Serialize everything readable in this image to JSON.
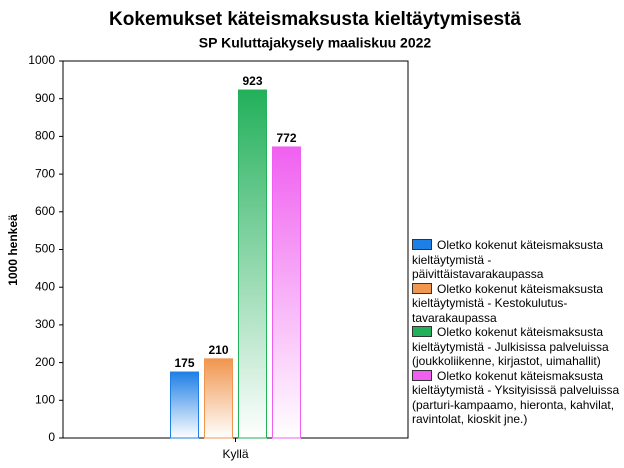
{
  "chart_data": {
    "type": "bar",
    "title": "Kokemukset käteismaksusta kieltäytymisestä",
    "subtitle": "SP Kuluttajakysely maaliskuu 2022",
    "y_label": "1000 henkeä",
    "categories": [
      "Kyllä"
    ],
    "series": [
      {
        "name": "Oletko kokenut käteismaksusta kieltäytymistä - päivittäistavarakaupassa",
        "color": "#1e7fe6",
        "values": [
          175
        ]
      },
      {
        "name": "Oletko kokenut käteismaksusta kieltäytymistä - Kestokulutus-tavarakaupassa",
        "color": "#f0964f",
        "values": [
          210
        ]
      },
      {
        "name": "Oletko kokenut käteismaksusta kieltäytymistä - Julkisissa palveluissa (joukkoliikenne, kirjastot, uimahallit)",
        "color": "#22b05a",
        "values": [
          923
        ]
      },
      {
        "name": "Oletko kokenut käteismaksusta kieltäytymistä - Yksityisissä palveluissa (parturi-kampaamo, hieronta, kahvilat, ravintolat, kioskit jne.)",
        "color": "#f060f0",
        "values": [
          772
        ]
      }
    ],
    "ylim": [
      0,
      1000
    ],
    "yticks": [
      0,
      100,
      200,
      300,
      400,
      500,
      600,
      700,
      800,
      900,
      1000
    ],
    "legend": "right"
  }
}
